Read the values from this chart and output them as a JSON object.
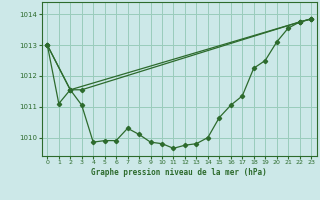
{
  "title": "Graphe pression niveau de la mer (hPa)",
  "bg_color": "#cce8e8",
  "grid_color": "#99ccbb",
  "line_color": "#2d6b2d",
  "marker_color": "#2d6b2d",
  "xlim": [
    -0.5,
    23.5
  ],
  "ylim": [
    1009.4,
    1014.4
  ],
  "yticks": [
    1010,
    1011,
    1012,
    1013,
    1014
  ],
  "xticks": [
    0,
    1,
    2,
    3,
    4,
    5,
    6,
    7,
    8,
    9,
    10,
    11,
    12,
    13,
    14,
    15,
    16,
    17,
    18,
    19,
    20,
    21,
    22,
    23
  ],
  "series_main": {
    "x": [
      0,
      1,
      2,
      3,
      4,
      5,
      6,
      7,
      8,
      9,
      10,
      11,
      12,
      13,
      14,
      15,
      16,
      17,
      18,
      19,
      20,
      21,
      22,
      23
    ],
    "y": [
      1013.0,
      1011.1,
      1011.55,
      1011.05,
      1009.85,
      1009.9,
      1009.9,
      1010.3,
      1010.1,
      1009.85,
      1009.8,
      1009.65,
      1009.75,
      1009.8,
      1010.0,
      1010.65,
      1011.05,
      1011.35,
      1012.25,
      1012.5,
      1013.1,
      1013.55,
      1013.75,
      1013.85
    ]
  },
  "series_upper1": {
    "x": [
      0,
      2,
      3,
      22,
      23
    ],
    "y": [
      1013.0,
      1011.55,
      1011.55,
      1013.75,
      1013.85
    ]
  },
  "series_upper2": {
    "x": [
      0,
      2,
      22,
      23
    ],
    "y": [
      1013.0,
      1011.55,
      1013.75,
      1013.85
    ]
  }
}
